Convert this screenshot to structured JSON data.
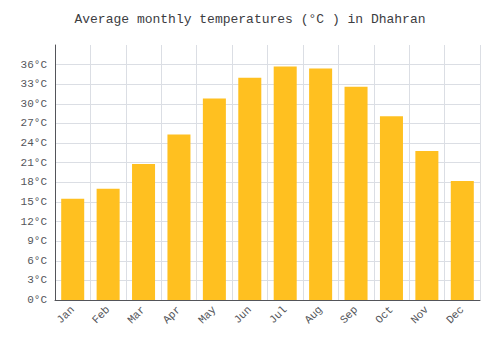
{
  "chart_data": {
    "type": "bar",
    "title": "Average monthly temperatures (°C ) in Dhahran",
    "categories": [
      "Jan",
      "Feb",
      "Mar",
      "Apr",
      "May",
      "Jun",
      "Jul",
      "Aug",
      "Sep",
      "Oct",
      "Nov",
      "Dec"
    ],
    "values": [
      15.5,
      17.0,
      20.8,
      25.3,
      30.8,
      34.0,
      35.7,
      35.4,
      32.6,
      28.1,
      22.8,
      18.2
    ],
    "color": "#FFC020",
    "ylim": [
      0,
      39
    ],
    "yticks": [
      {
        "value": 0,
        "label": "0°C"
      },
      {
        "value": 3,
        "label": "3°C"
      },
      {
        "value": 6,
        "label": "6°C"
      },
      {
        "value": 9,
        "label": "9°C"
      },
      {
        "value": 12,
        "label": "12°C"
      },
      {
        "value": 15,
        "label": "15°C"
      },
      {
        "value": 18,
        "label": "18°C"
      },
      {
        "value": 21,
        "label": "21°C"
      },
      {
        "value": 24,
        "label": "24°C"
      },
      {
        "value": 27,
        "label": "27°C"
      },
      {
        "value": 30,
        "label": "30°C"
      },
      {
        "value": 33,
        "label": "33°C"
      },
      {
        "value": 36,
        "label": "36°C"
      }
    ],
    "grid": true
  }
}
